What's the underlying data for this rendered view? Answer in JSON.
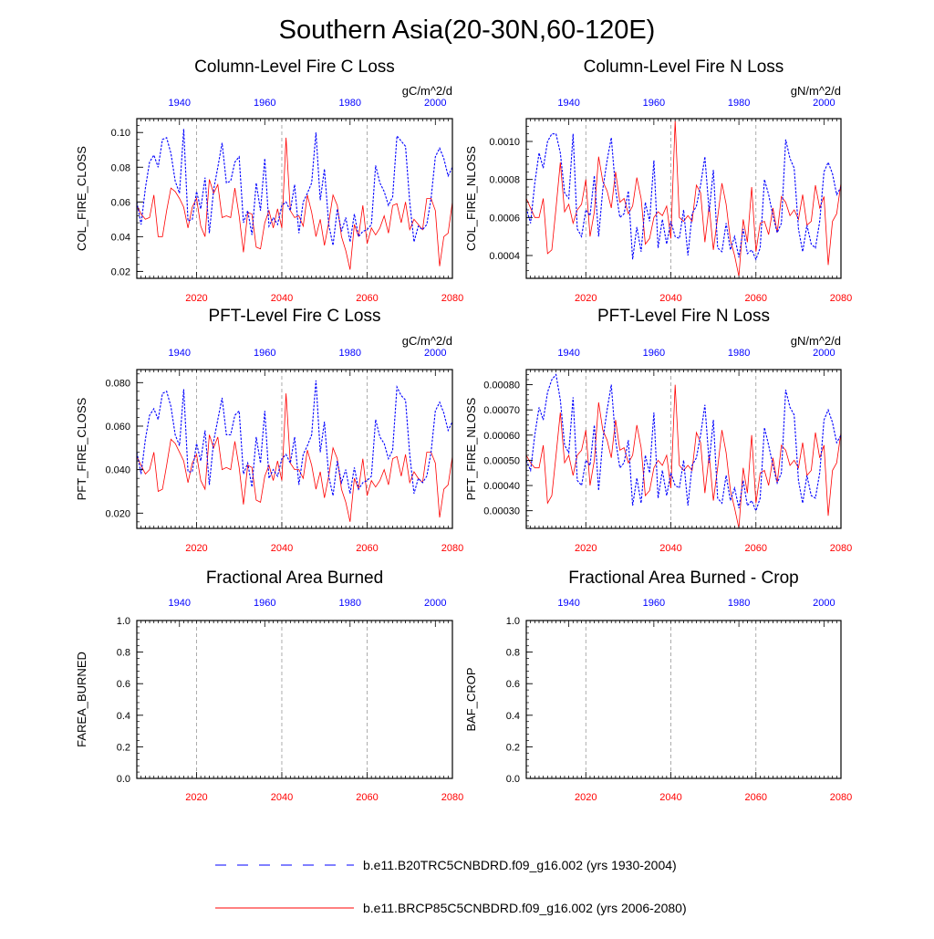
{
  "figure": {
    "title": "Southern Asia(20-30N,60-120E)"
  },
  "colors": {
    "red_series": "#ff0000",
    "blue_series": "#0000ff",
    "axis": "#000000",
    "gridline": "#999999"
  },
  "legend": {
    "items": [
      {
        "label": "b.e11.B20TRC5CNBDRD.f09_g16.002 (yrs 1930-2004)",
        "color": "#0000ff",
        "style": "dashed"
      },
      {
        "label": "b.e11.BRCP85C5CNBDRD.f09_g16.002 (yrs 2006-2080)",
        "color": "#ff0000",
        "style": "solid"
      }
    ]
  },
  "chart_data": [
    {
      "type": "line",
      "title": "Column-Level Fire C Loss",
      "units": "gC/m^2/d",
      "ylabel": "COL_FIRE_CLOSS",
      "ylim": [
        0.016,
        0.108
      ],
      "yticks": [
        0.02,
        0.04,
        0.06,
        0.08,
        0.1
      ],
      "ytick_labels": [
        "0.02",
        "0.04",
        "0.06",
        "0.08",
        "0.10"
      ],
      "x_bottom": {
        "range": [
          2006,
          2080
        ],
        "ticks": [
          2020,
          2040,
          2060,
          2080
        ]
      },
      "x_top": {
        "range": [
          1930,
          2004
        ],
        "ticks": [
          1940,
          1960,
          1980,
          2000
        ]
      },
      "series": [
        {
          "name": "b.e11.BRCP85C5CNBDRD.f09_g16.002 (yrs 2006-2080)",
          "color": "red",
          "x_start": 2006,
          "values": [
            0.058,
            0.053,
            0.05,
            0.051,
            0.064,
            0.04,
            0.04,
            0.055,
            0.068,
            0.066,
            0.062,
            0.057,
            0.045,
            0.057,
            0.062,
            0.046,
            0.04,
            0.073,
            0.065,
            0.07,
            0.051,
            0.052,
            0.051,
            0.068,
            0.052,
            0.031,
            0.054,
            0.053,
            0.034,
            0.033,
            0.048,
            0.055,
            0.045,
            0.056,
            0.045,
            0.097,
            0.055,
            0.051,
            0.052,
            0.046,
            0.064,
            0.054,
            0.04,
            0.05,
            0.035,
            0.048,
            0.064,
            0.058,
            0.04,
            0.032,
            0.021,
            0.047,
            0.04,
            0.058,
            0.036,
            0.045,
            0.041,
            0.045,
            0.052,
            0.042,
            0.058,
            0.059,
            0.048,
            0.06,
            0.044,
            0.05,
            0.047,
            0.044,
            0.062,
            0.062,
            0.055,
            0.023,
            0.04,
            0.042,
            0.06
          ]
        },
        {
          "name": "b.e11.B20TRC5CNBDRD.f09_g16.002 (yrs 1930-2004)",
          "color": "blue",
          "x_start": 1930,
          "values": [
            0.06,
            0.047,
            0.068,
            0.083,
            0.087,
            0.08,
            0.096,
            0.097,
            0.088,
            0.072,
            0.065,
            0.102,
            0.049,
            0.05,
            0.066,
            0.056,
            0.074,
            0.042,
            0.067,
            0.08,
            0.094,
            0.071,
            0.072,
            0.083,
            0.086,
            0.048,
            0.055,
            0.041,
            0.071,
            0.055,
            0.085,
            0.046,
            0.051,
            0.047,
            0.058,
            0.06,
            0.055,
            0.07,
            0.042,
            0.06,
            0.065,
            0.071,
            0.1,
            0.061,
            0.079,
            0.047,
            0.035,
            0.056,
            0.043,
            0.051,
            0.037,
            0.053,
            0.04,
            0.043,
            0.044,
            0.047,
            0.081,
            0.071,
            0.066,
            0.058,
            0.063,
            0.098,
            0.095,
            0.092,
            0.06,
            0.037,
            0.046,
            0.044,
            0.047,
            0.062,
            0.086,
            0.091,
            0.085,
            0.075,
            0.08
          ]
        }
      ]
    },
    {
      "type": "line",
      "title": "Column-Level Fire N Loss",
      "units": "gN/m^2/d",
      "ylabel": "COL_FIRE_NLOSS",
      "ylim": [
        0.00028,
        0.00112
      ],
      "yticks": [
        0.0004,
        0.0006,
        0.0008,
        0.001
      ],
      "ytick_labels": [
        "0.0004",
        "0.0006",
        "0.0008",
        "0.0010"
      ],
      "x_bottom": {
        "range": [
          2006,
          2080
        ],
        "ticks": [
          2020,
          2040,
          2060,
          2080
        ]
      },
      "x_top": {
        "range": [
          1930,
          2004
        ],
        "ticks": [
          1940,
          1960,
          1980,
          2000
        ]
      },
      "series": [
        {
          "name": "b.e11.BRCP85C5CNBDRD.f09_g16.002 (yrs 2006-2080)",
          "color": "red",
          "x_start": 2006,
          "values": [
            0.0007,
            0.00065,
            0.0006,
            0.0006,
            0.0007,
            0.00041,
            0.00043,
            0.00065,
            0.00089,
            0.00063,
            0.00067,
            0.00057,
            0.00064,
            0.00067,
            0.0008,
            0.0005,
            0.00063,
            0.00092,
            0.00079,
            0.00074,
            0.00065,
            0.00084,
            0.00068,
            0.0007,
            0.00062,
            0.00066,
            0.00081,
            0.0007,
            0.00046,
            0.00049,
            0.0006,
            0.00063,
            0.00061,
            0.00066,
            0.00049,
            0.00111,
            0.0006,
            0.00058,
            0.00061,
            0.00058,
            0.00077,
            0.00073,
            0.00047,
            0.00066,
            0.00043,
            0.0006,
            0.00078,
            0.00067,
            0.00048,
            0.0004,
            0.00029,
            0.00059,
            0.00047,
            0.00076,
            0.00042,
            0.00057,
            0.00058,
            0.00051,
            0.00065,
            0.00052,
            0.00071,
            0.00068,
            0.00061,
            0.00064,
            0.00059,
            0.00072,
            0.00056,
            0.00058,
            0.00077,
            0.00065,
            0.00071,
            0.00035,
            0.00058,
            0.00062,
            0.00078
          ]
        },
        {
          "name": "b.e11.B20TRC5CNBDRD.f09_g16.002 (yrs 1930-2004)",
          "color": "blue",
          "x_start": 1930,
          "values": [
            0.00065,
            0.00057,
            0.00078,
            0.00094,
            0.00086,
            0.001,
            0.00104,
            0.00104,
            0.00094,
            0.00073,
            0.0007,
            0.00104,
            0.00054,
            0.0005,
            0.00064,
            0.00061,
            0.00082,
            0.0005,
            0.00075,
            0.0009,
            0.00102,
            0.00075,
            0.0006,
            0.00062,
            0.00074,
            0.00038,
            0.00055,
            0.00042,
            0.00068,
            0.00058,
            0.0009,
            0.00044,
            0.00059,
            0.00046,
            0.00058,
            0.0005,
            0.00049,
            0.00064,
            0.0004,
            0.00062,
            0.00066,
            0.00077,
            0.00092,
            0.00063,
            0.00085,
            0.00044,
            0.00042,
            0.00057,
            0.00043,
            0.0005,
            0.00039,
            0.00054,
            0.00041,
            0.00043,
            0.00038,
            0.00044,
            0.0008,
            0.00072,
            0.00061,
            0.00052,
            0.00057,
            0.00101,
            0.00091,
            0.00086,
            0.00054,
            0.00042,
            0.00056,
            0.00046,
            0.00044,
            0.00058,
            0.00084,
            0.00089,
            0.00083,
            0.00072,
            0.00076
          ]
        }
      ]
    },
    {
      "type": "line",
      "title": "PFT-Level Fire C Loss",
      "units": "gC/m^2/d",
      "ylabel": "PFT_FIRE_CLOSS",
      "ylim": [
        0.013,
        0.086
      ],
      "yticks": [
        0.02,
        0.04,
        0.06,
        0.08
      ],
      "ytick_labels": [
        "0.020",
        "0.040",
        "0.060",
        "0.080"
      ],
      "x_bottom": {
        "range": [
          2006,
          2080
        ],
        "ticks": [
          2020,
          2040,
          2060,
          2080
        ]
      },
      "x_top": {
        "range": [
          1930,
          2004
        ],
        "ticks": [
          1940,
          1960,
          1980,
          2000
        ]
      },
      "series": [
        {
          "name": "b.e11.BRCP85C5CNBDRD.f09_g16.002 (yrs 2006-2080)",
          "color": "red",
          "x_start": 2006,
          "values": [
            0.046,
            0.042,
            0.038,
            0.04,
            0.048,
            0.03,
            0.031,
            0.042,
            0.054,
            0.052,
            0.048,
            0.044,
            0.034,
            0.043,
            0.047,
            0.035,
            0.031,
            0.056,
            0.05,
            0.055,
            0.04,
            0.041,
            0.04,
            0.053,
            0.041,
            0.024,
            0.042,
            0.041,
            0.026,
            0.025,
            0.037,
            0.042,
            0.035,
            0.044,
            0.035,
            0.075,
            0.043,
            0.04,
            0.04,
            0.036,
            0.049,
            0.042,
            0.031,
            0.039,
            0.027,
            0.037,
            0.05,
            0.045,
            0.031,
            0.025,
            0.016,
            0.036,
            0.031,
            0.045,
            0.028,
            0.035,
            0.032,
            0.035,
            0.04,
            0.033,
            0.045,
            0.046,
            0.037,
            0.047,
            0.034,
            0.039,
            0.036,
            0.034,
            0.048,
            0.048,
            0.043,
            0.018,
            0.031,
            0.033,
            0.046
          ]
        },
        {
          "name": "b.e11.B20TRC5CNBDRD.f09_g16.002 (yrs 1930-2004)",
          "color": "blue",
          "x_start": 1930,
          "values": [
            0.048,
            0.038,
            0.054,
            0.065,
            0.068,
            0.063,
            0.075,
            0.076,
            0.069,
            0.056,
            0.051,
            0.077,
            0.039,
            0.039,
            0.052,
            0.044,
            0.058,
            0.033,
            0.053,
            0.063,
            0.073,
            0.056,
            0.056,
            0.065,
            0.067,
            0.038,
            0.043,
            0.032,
            0.055,
            0.043,
            0.067,
            0.036,
            0.04,
            0.037,
            0.045,
            0.047,
            0.043,
            0.055,
            0.033,
            0.047,
            0.051,
            0.056,
            0.081,
            0.048,
            0.062,
            0.037,
            0.028,
            0.044,
            0.034,
            0.04,
            0.029,
            0.041,
            0.031,
            0.034,
            0.035,
            0.037,
            0.063,
            0.055,
            0.052,
            0.045,
            0.049,
            0.078,
            0.074,
            0.072,
            0.047,
            0.029,
            0.036,
            0.034,
            0.037,
            0.048,
            0.067,
            0.071,
            0.066,
            0.058,
            0.062
          ]
        }
      ]
    },
    {
      "type": "line",
      "title": "PFT-Level Fire N Loss",
      "units": "gN/m^2/d",
      "ylabel": "PFT_FIRE_NLOSS",
      "ylim": [
        0.00023,
        0.00086
      ],
      "yticks": [
        0.0003,
        0.0004,
        0.0005,
        0.0006,
        0.0007,
        0.0008
      ],
      "ytick_labels": [
        "0.00030",
        "0.00040",
        "0.00050",
        "0.00060",
        "0.00070",
        "0.00080"
      ],
      "x_bottom": {
        "range": [
          2006,
          2080
        ],
        "ticks": [
          2020,
          2040,
          2060,
          2080
        ]
      },
      "x_top": {
        "range": [
          1930,
          2004
        ],
        "ticks": [
          1940,
          1960,
          1980,
          2000
        ]
      },
      "series": [
        {
          "name": "b.e11.BRCP85C5CNBDRD.f09_g16.002 (yrs 2006-2080)",
          "color": "red",
          "x_start": 2006,
          "values": [
            0.00052,
            0.00049,
            0.00047,
            0.00047,
            0.00056,
            0.00033,
            0.00036,
            0.00052,
            0.00069,
            0.00049,
            0.00052,
            0.00044,
            0.00052,
            0.00054,
            0.00062,
            0.0004,
            0.0005,
            0.00073,
            0.00062,
            0.00058,
            0.00051,
            0.00066,
            0.00054,
            0.00055,
            0.00049,
            0.00052,
            0.00064,
            0.00055,
            0.00036,
            0.00038,
            0.00047,
            0.0005,
            0.00048,
            0.00052,
            0.00039,
            0.0008,
            0.00048,
            0.00046,
            0.00048,
            0.00046,
            0.00061,
            0.00057,
            0.00037,
            0.00052,
            0.00034,
            0.00047,
            0.00062,
            0.00053,
            0.00038,
            0.00031,
            0.00023,
            0.00047,
            0.00037,
            0.0006,
            0.00033,
            0.00045,
            0.00046,
            0.0004,
            0.00051,
            0.00041,
            0.00056,
            0.00054,
            0.00048,
            0.0005,
            0.00047,
            0.00057,
            0.00044,
            0.00046,
            0.00061,
            0.00051,
            0.00056,
            0.00028,
            0.00046,
            0.00049,
            0.00061
          ]
        },
        {
          "name": "b.e11.B20TRC5CNBDRD.f09_g16.002 (yrs 1930-2004)",
          "color": "blue",
          "x_start": 1930,
          "values": [
            0.0005,
            0.00046,
            0.0006,
            0.00071,
            0.00066,
            0.00077,
            0.00082,
            0.00084,
            0.00074,
            0.00056,
            0.00053,
            0.00075,
            0.00042,
            0.0004,
            0.0005,
            0.00048,
            0.00064,
            0.00038,
            0.00058,
            0.0007,
            0.0008,
            0.00058,
            0.00047,
            0.00049,
            0.00058,
            0.00032,
            0.00043,
            0.00033,
            0.00052,
            0.00045,
            0.00069,
            0.00035,
            0.00046,
            0.00036,
            0.00045,
            0.0004,
            0.00039,
            0.0005,
            0.00032,
            0.00048,
            0.00051,
            0.0006,
            0.00072,
            0.00049,
            0.00066,
            0.00035,
            0.00033,
            0.00044,
            0.00034,
            0.00039,
            0.00031,
            0.00042,
            0.00032,
            0.00034,
            0.0003,
            0.00035,
            0.00063,
            0.00056,
            0.00048,
            0.00041,
            0.00045,
            0.00078,
            0.00071,
            0.00068,
            0.00042,
            0.00033,
            0.00044,
            0.00036,
            0.00035,
            0.00045,
            0.00066,
            0.0007,
            0.00065,
            0.00057,
            0.0006
          ]
        }
      ]
    },
    {
      "type": "line",
      "title": "Fractional Area Burned",
      "units": "",
      "ylabel": "FAREA_BURNED",
      "ylim": [
        0.0,
        1.0
      ],
      "yticks": [
        0.0,
        0.2,
        0.4,
        0.6,
        0.8,
        1.0
      ],
      "ytick_labels": [
        "0.0",
        "0.2",
        "0.4",
        "0.6",
        "0.8",
        "1.0"
      ],
      "x_bottom": {
        "range": [
          2006,
          2080
        ],
        "ticks": [
          2020,
          2040,
          2060,
          2080
        ]
      },
      "x_top": {
        "range": [
          1930,
          2004
        ],
        "ticks": [
          1940,
          1960,
          1980,
          2000
        ]
      },
      "series": []
    },
    {
      "type": "line",
      "title": "Fractional Area Burned - Crop",
      "units": "",
      "ylabel": "BAF_CROP",
      "ylim": [
        0.0,
        1.0
      ],
      "yticks": [
        0.0,
        0.2,
        0.4,
        0.6,
        0.8,
        1.0
      ],
      "ytick_labels": [
        "0.0",
        "0.2",
        "0.4",
        "0.6",
        "0.8",
        "1.0"
      ],
      "x_bottom": {
        "range": [
          2006,
          2080
        ],
        "ticks": [
          2020,
          2040,
          2060,
          2080
        ]
      },
      "x_top": {
        "range": [
          1930,
          2004
        ],
        "ticks": [
          1940,
          1960,
          1980,
          2000
        ]
      },
      "series": []
    }
  ]
}
